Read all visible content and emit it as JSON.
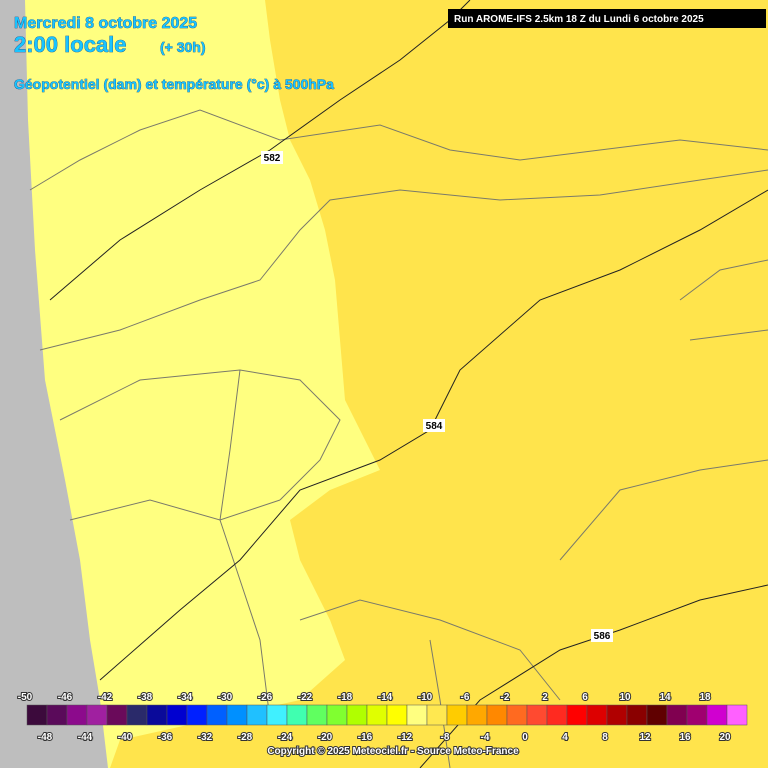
{
  "header": {
    "date": "Mercredi 8 octobre 2025",
    "time": "2:00 locale",
    "offset": "(+ 30h)",
    "subtitle": "Géopotentiel (dam) et température (°c) à 500hPa",
    "run": "Run AROME-IFS 2.5km 18 Z du Lundi 6 octobre 2025"
  },
  "contour_labels": [
    582,
    584,
    586
  ],
  "colorbar": {
    "levels": [
      -50,
      -48,
      -46,
      -44,
      -42,
      -40,
      -38,
      -36,
      -34,
      -32,
      -30,
      -28,
      -26,
      -24,
      -22,
      -20,
      -18,
      -16,
      -14,
      -12,
      -10,
      -8,
      -6,
      -4,
      -2,
      0,
      2,
      4,
      6,
      8,
      10,
      12,
      14,
      16,
      18,
      20
    ],
    "colors": [
      "#3c0a3c",
      "#5a0a5a",
      "#8c0a8c",
      "#a020a0",
      "#6a0a5a",
      "#2a2a6a",
      "#0a0a9a",
      "#0000d0",
      "#0020ff",
      "#0060ff",
      "#0090ff",
      "#20c0ff",
      "#40f0ff",
      "#40ffb0",
      "#60ff60",
      "#80ff30",
      "#b0ff00",
      "#e0ff00",
      "#ffff00",
      "#ffff80",
      "#ffe850",
      "#ffcc00",
      "#ffa800",
      "#ff8800",
      "#ff6a20",
      "#ff4a30",
      "#ff2a20",
      "#ff0000",
      "#dd0000",
      "#b00000",
      "#8a0000",
      "#600000",
      "#800050",
      "#a00070",
      "#d000d0",
      "#ff60ff"
    ]
  },
  "footer": "Copyright © 2025 Meteociel.fr - Source Meteo-France"
}
